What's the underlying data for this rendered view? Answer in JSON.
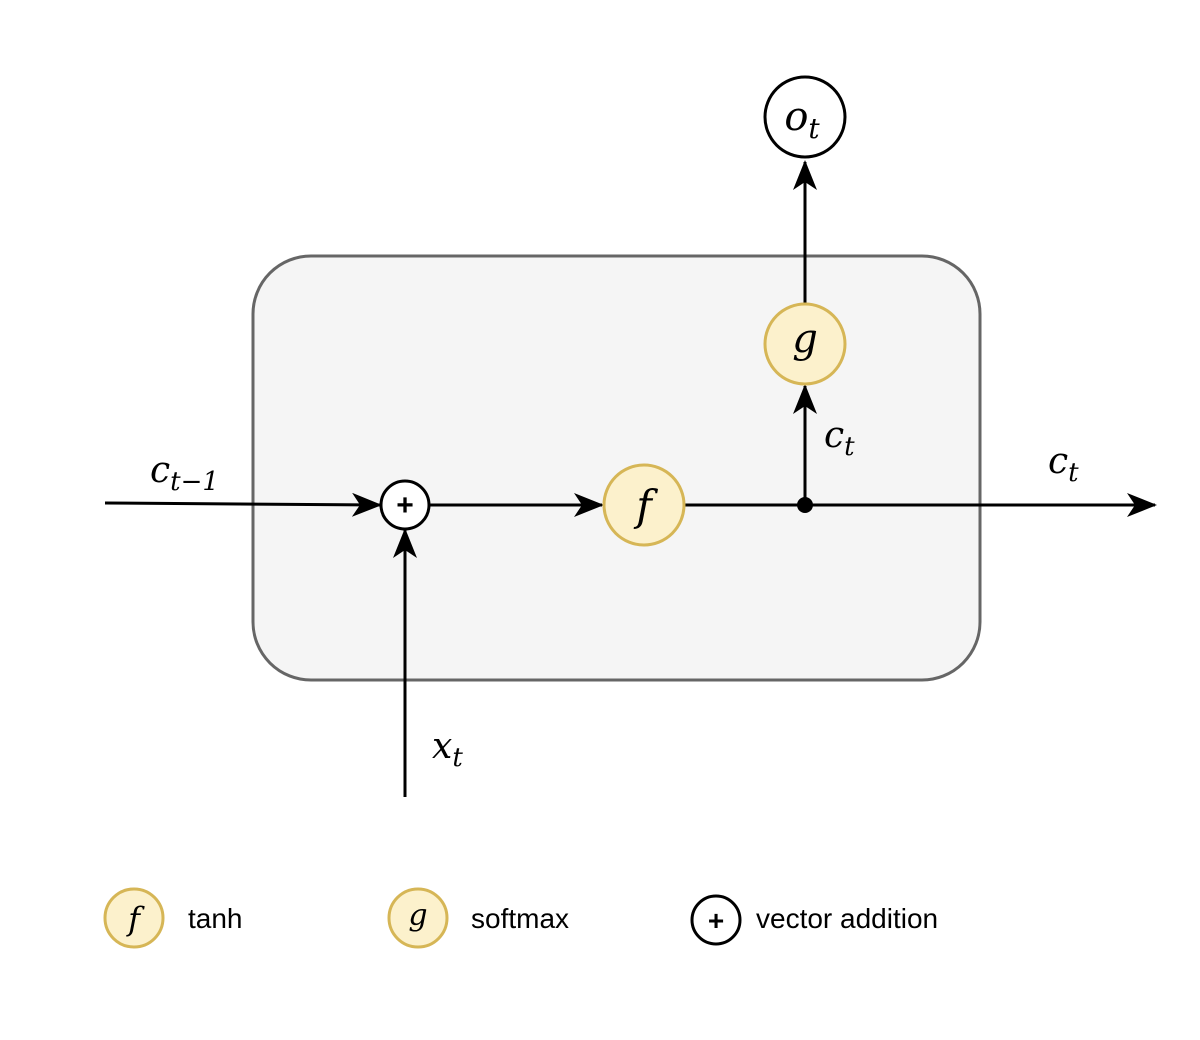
{
  "diagram": {
    "input_prev": {
      "base": "c",
      "sub": "t−1"
    },
    "input_x": {
      "base": "x",
      "sub": "t"
    },
    "state_up": {
      "base": "c",
      "sub": "t"
    },
    "state_out": {
      "base": "c",
      "sub": "t"
    },
    "output": {
      "base": "o",
      "sub": "t"
    },
    "node_f": "f",
    "node_g": "g",
    "node_add": "+"
  },
  "legend": [
    {
      "symbol": "f",
      "label": "tanh"
    },
    {
      "symbol": "g",
      "label": "softmax"
    },
    {
      "symbol": "+",
      "label": "vector addition"
    }
  ],
  "colors": {
    "node_fill": "#fcf1cc",
    "node_stroke": "#d6b656",
    "cell_fill": "#f5f5f5",
    "cell_stroke": "#666666"
  }
}
